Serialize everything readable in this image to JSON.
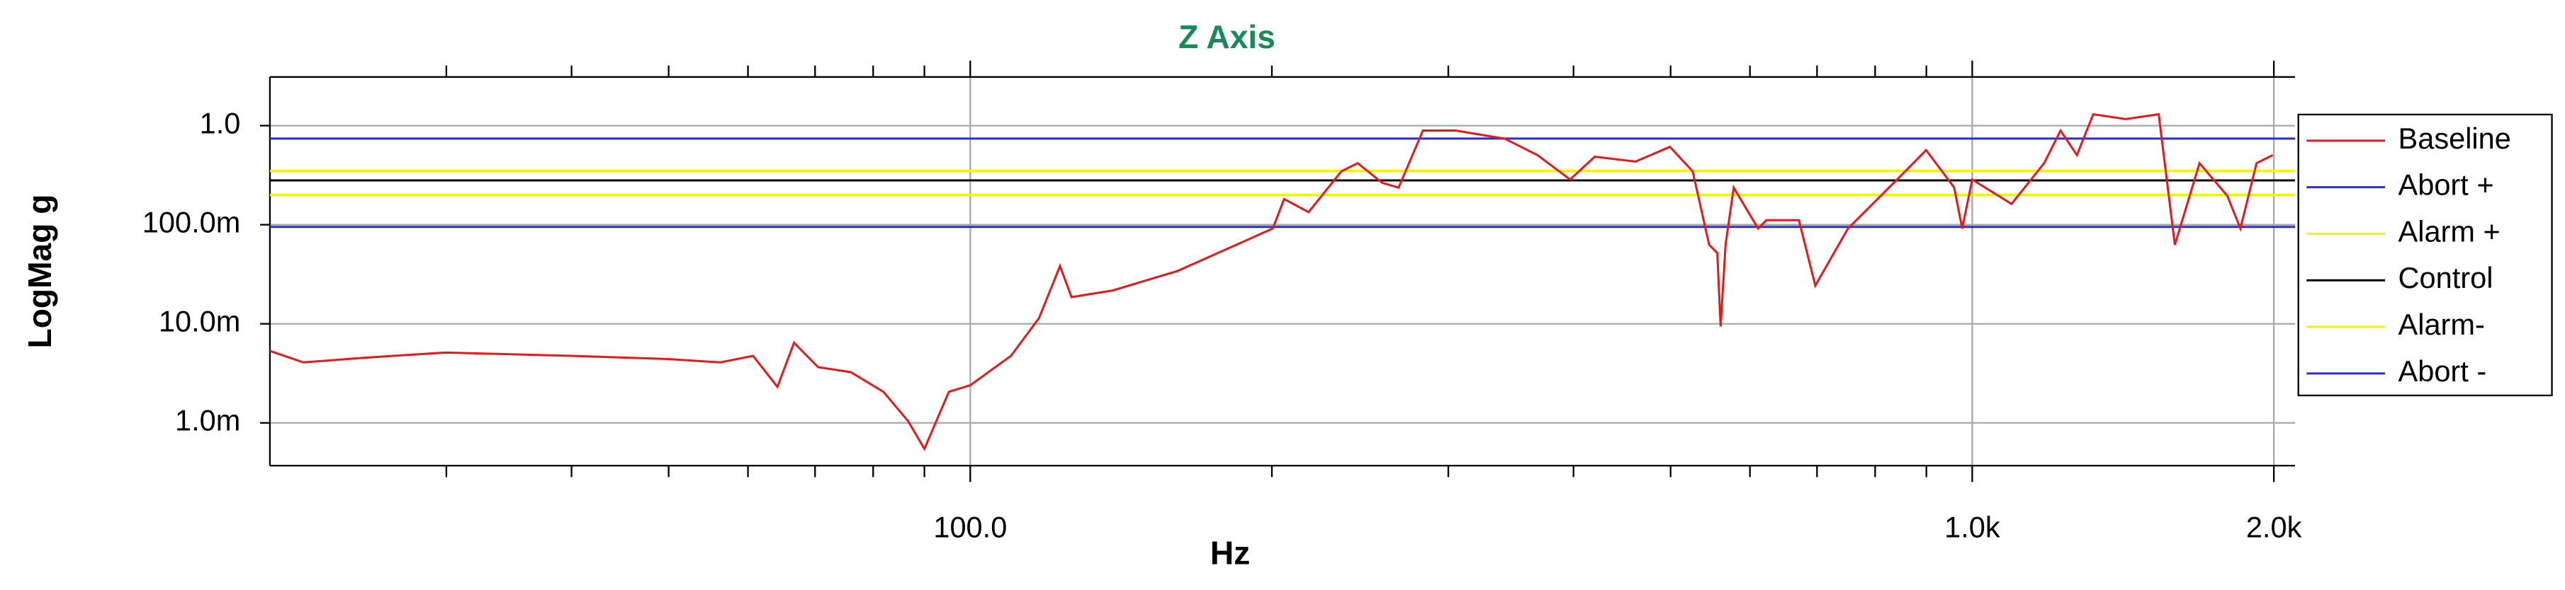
{
  "chart_data": {
    "type": "line",
    "title": "Z Axis",
    "x_label": "Hz",
    "y_label": "LogMag g",
    "x_scale": "log",
    "y_scale": "log",
    "grid": true,
    "legend": "right",
    "xlim": [
      20,
      2100
    ],
    "ylim": [
      0.00037,
      3.1
    ],
    "xticks": [
      {
        "value": 100,
        "label": "100.0"
      },
      {
        "value": 1000,
        "label": "1.0k"
      },
      {
        "value": 2000,
        "label": "2.0k"
      }
    ],
    "xminor_ticks": [
      30,
      40,
      50,
      60,
      70,
      80,
      90,
      200,
      300,
      400,
      500,
      600,
      700,
      800,
      900
    ],
    "yticks": [
      {
        "value": 1,
        "label": "1.0"
      },
      {
        "value": 0.1,
        "label": "100.0m"
      },
      {
        "value": 0.01,
        "label": "10.0m"
      },
      {
        "value": 0.001,
        "label": "1.0m"
      }
    ],
    "series": [
      {
        "name": "Baseline",
        "color": "#e41a1a",
        "x": [
          20.0,
          21.6,
          25.1,
          29.9,
          40.0,
          49.9,
          56.3,
          60.7,
          64.2,
          66.7,
          70.5,
          76.0,
          81.9,
          86.7,
          90.0,
          95.2,
          100,
          109.8,
          117.1,
          122.9,
          126.2,
          138.7,
          161.1,
          200.4,
          205.7,
          217.6,
          234.6,
          243.6,
          257.7,
          267.6,
          283.0,
          305.1,
          341.6,
          368.1,
          396.9,
          420.0,
          461.3,
          499.2,
          526.0,
          546.3,
          556.6,
          560.9,
          567.3,
          578.0,
          611.4,
          623.0,
          671.5,
          697.2,
          751.6,
          841.4,
          899.5,
          959.4,
          977.2,
          1000,
          1094.5,
          1179.6,
          1225,
          1272,
          1320.6,
          1423,
          1535,
          1593,
          1686,
          1797,
          1852,
          1922,
          1995
        ],
        "values": [
          0.00533,
          0.00408,
          0.00458,
          0.00513,
          0.00475,
          0.00441,
          0.00408,
          0.00475,
          0.00231,
          0.00644,
          0.00365,
          0.00325,
          0.00206,
          0.00104,
          0.000547,
          0.00206,
          0.0024,
          0.00475,
          0.0114,
          0.0383,
          0.0186,
          0.0217,
          0.0342,
          0.0916,
          0.1815,
          0.134,
          0.346,
          0.418,
          0.265,
          0.237,
          0.892,
          0.892,
          0.738,
          0.505,
          0.286,
          0.486,
          0.434,
          0.611,
          0.346,
          0.0627,
          0.0519,
          0.00941,
          0.0627,
          0.237,
          0.0916,
          0.111,
          0.111,
          0.0243,
          0.0916,
          0.286,
          0.566,
          0.237,
          0.0916,
          0.286,
          0.162,
          0.418,
          0.892,
          0.505,
          1.304,
          1.164,
          1.304,
          0.0627,
          0.418,
          0.1957,
          0.0916,
          0.418,
          0.505
        ]
      },
      {
        "name": "Abort +",
        "color": "#2b2bd9",
        "value": 0.74
      },
      {
        "name": "Alarm +",
        "color": "#f2f20a",
        "value": 0.35
      },
      {
        "name": "Control",
        "color": "#000000",
        "value": 0.28
      },
      {
        "name": "Alarm-",
        "color": "#f2f20a",
        "value": 0.2
      },
      {
        "name": "Abort -",
        "color": "#2b2bd9",
        "value": 0.095
      }
    ]
  }
}
